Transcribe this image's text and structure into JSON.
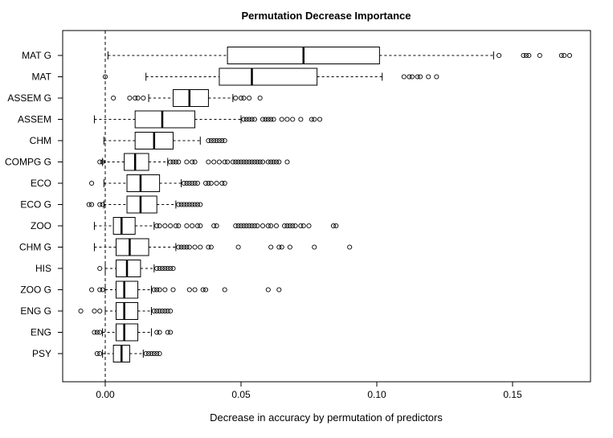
{
  "chart_data": {
    "type": "boxplot",
    "orientation": "horizontal",
    "title": "Permutation Decrease Importance",
    "xlabel": "Decrease in accuracy by permutation of predictors",
    "ylabel": "",
    "xlim": [
      -0.017,
      0.178
    ],
    "xticks": [
      0.0,
      0.05,
      0.1,
      0.15
    ],
    "xtick_labels": [
      "0.00",
      "0.05",
      "0.10",
      "0.15"
    ],
    "reference_line": 0.0,
    "series": [
      {
        "name": "MAT G",
        "whisker_low": 0.001,
        "q1": 0.045,
        "median": 0.073,
        "q3": 0.101,
        "whisker_high": 0.143,
        "outliers": [
          0.145,
          0.154,
          0.155,
          0.156,
          0.16,
          0.168,
          0.169,
          0.171
        ]
      },
      {
        "name": "MAT",
        "whisker_low": 0.015,
        "q1": 0.042,
        "median": 0.054,
        "q3": 0.078,
        "whisker_high": 0.102,
        "outliers": [
          0.0,
          0.11,
          0.112,
          0.113,
          0.115,
          0.116,
          0.119,
          0.122
        ]
      },
      {
        "name": "ASSEM G",
        "whisker_low": 0.016,
        "q1": 0.025,
        "median": 0.031,
        "q3": 0.038,
        "whisker_high": 0.047,
        "outliers": [
          0.003,
          0.009,
          0.011,
          0.012,
          0.014,
          0.048,
          0.05,
          0.051,
          0.053,
          0.057
        ]
      },
      {
        "name": "ASSEM",
        "whisker_low": -0.004,
        "q1": 0.011,
        "median": 0.021,
        "q3": 0.033,
        "whisker_high": 0.05,
        "outliers": [
          0.051,
          0.052,
          0.053,
          0.054,
          0.055,
          0.058,
          0.059,
          0.06,
          0.061,
          0.062,
          0.065,
          0.067,
          0.069,
          0.072,
          0.076,
          0.077,
          0.079
        ]
      },
      {
        "name": "CHM",
        "whisker_low": -0.0005,
        "q1": 0.011,
        "median": 0.018,
        "q3": 0.025,
        "whisker_high": 0.035,
        "outliers": [
          0.038,
          0.039,
          0.04,
          0.041,
          0.042,
          0.043,
          0.044
        ]
      },
      {
        "name": "COMPG G",
        "whisker_low": -0.001,
        "q1": 0.007,
        "median": 0.011,
        "q3": 0.016,
        "whisker_high": 0.023,
        "outliers": [
          -0.002,
          -0.001,
          0.024,
          0.025,
          0.026,
          0.027,
          0.03,
          0.032,
          0.033,
          0.038,
          0.04,
          0.042,
          0.044,
          0.045,
          0.047,
          0.048,
          0.049,
          0.05,
          0.051,
          0.052,
          0.053,
          0.054,
          0.055,
          0.056,
          0.057,
          0.058,
          0.06,
          0.061,
          0.062,
          0.063,
          0.064,
          0.067
        ]
      },
      {
        "name": "ECO",
        "whisker_low": -0.0005,
        "q1": 0.008,
        "median": 0.013,
        "q3": 0.02,
        "whisker_high": 0.028,
        "outliers": [
          -0.005,
          0.029,
          0.03,
          0.031,
          0.032,
          0.033,
          0.034,
          0.037,
          0.038,
          0.039,
          0.041,
          0.043,
          0.044
        ]
      },
      {
        "name": "ECO G",
        "whisker_low": -0.0005,
        "q1": 0.008,
        "median": 0.013,
        "q3": 0.019,
        "whisker_high": 0.026,
        "outliers": [
          -0.006,
          -0.005,
          -0.002,
          -0.001,
          0.027,
          0.028,
          0.029,
          0.03,
          0.031,
          0.032,
          0.033,
          0.034,
          0.035
        ]
      },
      {
        "name": "ZOO",
        "whisker_low": -0.004,
        "q1": 0.003,
        "median": 0.006,
        "q3": 0.011,
        "whisker_high": 0.018,
        "outliers": [
          0.019,
          0.02,
          0.022,
          0.024,
          0.026,
          0.027,
          0.03,
          0.032,
          0.034,
          0.035,
          0.04,
          0.041,
          0.048,
          0.049,
          0.05,
          0.051,
          0.052,
          0.053,
          0.054,
          0.055,
          0.056,
          0.058,
          0.06,
          0.061,
          0.063,
          0.066,
          0.067,
          0.068,
          0.069,
          0.07,
          0.072,
          0.073,
          0.075,
          0.084,
          0.085
        ]
      },
      {
        "name": "CHM G",
        "whisker_low": -0.004,
        "q1": 0.004,
        "median": 0.009,
        "q3": 0.016,
        "whisker_high": 0.026,
        "outliers": [
          0.027,
          0.028,
          0.029,
          0.03,
          0.031,
          0.033,
          0.035,
          0.038,
          0.039,
          0.049,
          0.061,
          0.064,
          0.065,
          0.068,
          0.077,
          0.09
        ]
      },
      {
        "name": "HIS",
        "whisker_low": 0.0,
        "q1": 0.004,
        "median": 0.008,
        "q3": 0.013,
        "whisker_high": 0.018,
        "outliers": [
          -0.002,
          0.019,
          0.02,
          0.021,
          0.022,
          0.023,
          0.024,
          0.025
        ]
      },
      {
        "name": "ZOO G",
        "whisker_low": 0.0,
        "q1": 0.004,
        "median": 0.007,
        "q3": 0.012,
        "whisker_high": 0.017,
        "outliers": [
          -0.005,
          -0.002,
          -0.001,
          0.018,
          0.019,
          0.02,
          0.022,
          0.025,
          0.031,
          0.033,
          0.036,
          0.037,
          0.044,
          0.06,
          0.064
        ]
      },
      {
        "name": "ENG G",
        "whisker_low": 0.0,
        "q1": 0.004,
        "median": 0.007,
        "q3": 0.012,
        "whisker_high": 0.017,
        "outliers": [
          -0.009,
          -0.004,
          -0.002,
          0.018,
          0.019,
          0.02,
          0.021,
          0.022,
          0.023,
          0.024
        ]
      },
      {
        "name": "ENG",
        "whisker_low": -0.001,
        "q1": 0.004,
        "median": 0.007,
        "q3": 0.012,
        "whisker_high": 0.017,
        "outliers": [
          -0.004,
          -0.003,
          -0.002,
          0.019,
          0.02,
          0.023,
          0.024
        ]
      },
      {
        "name": "PSY",
        "whisker_low": -0.001,
        "q1": 0.003,
        "median": 0.006,
        "q3": 0.009,
        "whisker_high": 0.014,
        "outliers": [
          -0.003,
          -0.002,
          0.015,
          0.016,
          0.017,
          0.018,
          0.019,
          0.02
        ]
      }
    ]
  }
}
